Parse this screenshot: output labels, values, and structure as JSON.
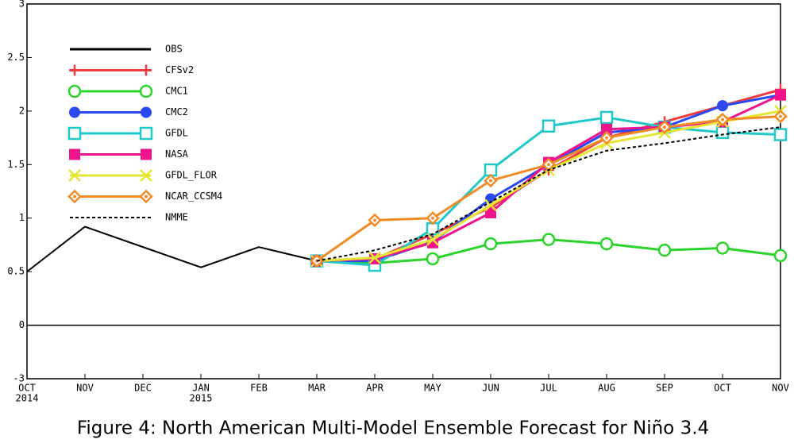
{
  "chart_data": {
    "type": "line",
    "caption": "Figure 4: North American Multi-Model Ensemble Forecast for Niño 3.4",
    "categories": [
      "OCT",
      "NOV",
      "DEC",
      "JAN",
      "FEB",
      "MAR",
      "APR",
      "MAY",
      "JUN",
      "JUL",
      "AUG",
      "SEP",
      "OCT",
      "NOV"
    ],
    "year_labels": [
      "2014",
      null,
      null,
      "2015",
      null,
      null,
      null,
      null,
      null,
      null,
      null,
      null,
      null,
      null
    ],
    "ylim": [
      -3,
      3
    ],
    "yticks": [
      -3,
      0,
      0.5,
      1,
      1.5,
      2,
      2.5,
      3
    ],
    "series": [
      {
        "name": "OBS",
        "color": "#000000",
        "marker": "none",
        "values": [
          0.5,
          0.92,
          0.73,
          0.54,
          0.73,
          0.6,
          null,
          null,
          null,
          null,
          null,
          null,
          null,
          null
        ]
      },
      {
        "name": "CFSv2",
        "color": "#f03c3c",
        "marker": "plus",
        "values": [
          null,
          null,
          null,
          null,
          null,
          0.6,
          0.62,
          0.85,
          1.1,
          1.45,
          1.75,
          1.9,
          2.05,
          2.2
        ]
      },
      {
        "name": "CMC1",
        "color": "#2ad42a",
        "marker": "circle-open",
        "values": [
          null,
          null,
          null,
          null,
          null,
          0.6,
          0.58,
          0.62,
          0.76,
          0.8,
          0.76,
          0.7,
          0.72,
          0.65
        ]
      },
      {
        "name": "CMC2",
        "color": "#2a4af0",
        "marker": "circle",
        "values": [
          null,
          null,
          null,
          null,
          null,
          0.6,
          0.6,
          0.78,
          1.18,
          1.5,
          1.8,
          1.85,
          2.05,
          2.15
        ]
      },
      {
        "name": "GFDL",
        "color": "#22c8c8",
        "marker": "square-open",
        "values": [
          null,
          null,
          null,
          null,
          null,
          0.6,
          0.56,
          0.9,
          1.45,
          1.86,
          1.94,
          1.85,
          1.8,
          1.78
        ]
      },
      {
        "name": "NASA",
        "color": "#f0148c",
        "marker": "square",
        "values": [
          null,
          null,
          null,
          null,
          null,
          0.6,
          0.62,
          0.77,
          1.05,
          1.52,
          1.83,
          1.85,
          1.9,
          2.15
        ]
      },
      {
        "name": "GFDL_FLOR",
        "color": "#e6e632",
        "marker": "x",
        "values": [
          null,
          null,
          null,
          null,
          null,
          0.6,
          0.63,
          0.8,
          1.12,
          1.45,
          1.7,
          1.8,
          1.9,
          2.0
        ]
      },
      {
        "name": "NCAR_CCSM4",
        "color": "#f08c28",
        "marker": "diamond-open",
        "values": [
          null,
          null,
          null,
          null,
          null,
          0.6,
          0.98,
          1.0,
          1.35,
          1.5,
          1.75,
          1.85,
          1.92,
          1.95
        ]
      },
      {
        "name": "NMME",
        "color": "#000000",
        "marker": "none",
        "dash": true,
        "values": [
          null,
          null,
          null,
          null,
          null,
          0.6,
          0.7,
          0.85,
          1.15,
          1.45,
          1.63,
          1.7,
          1.78,
          1.85
        ]
      }
    ]
  }
}
